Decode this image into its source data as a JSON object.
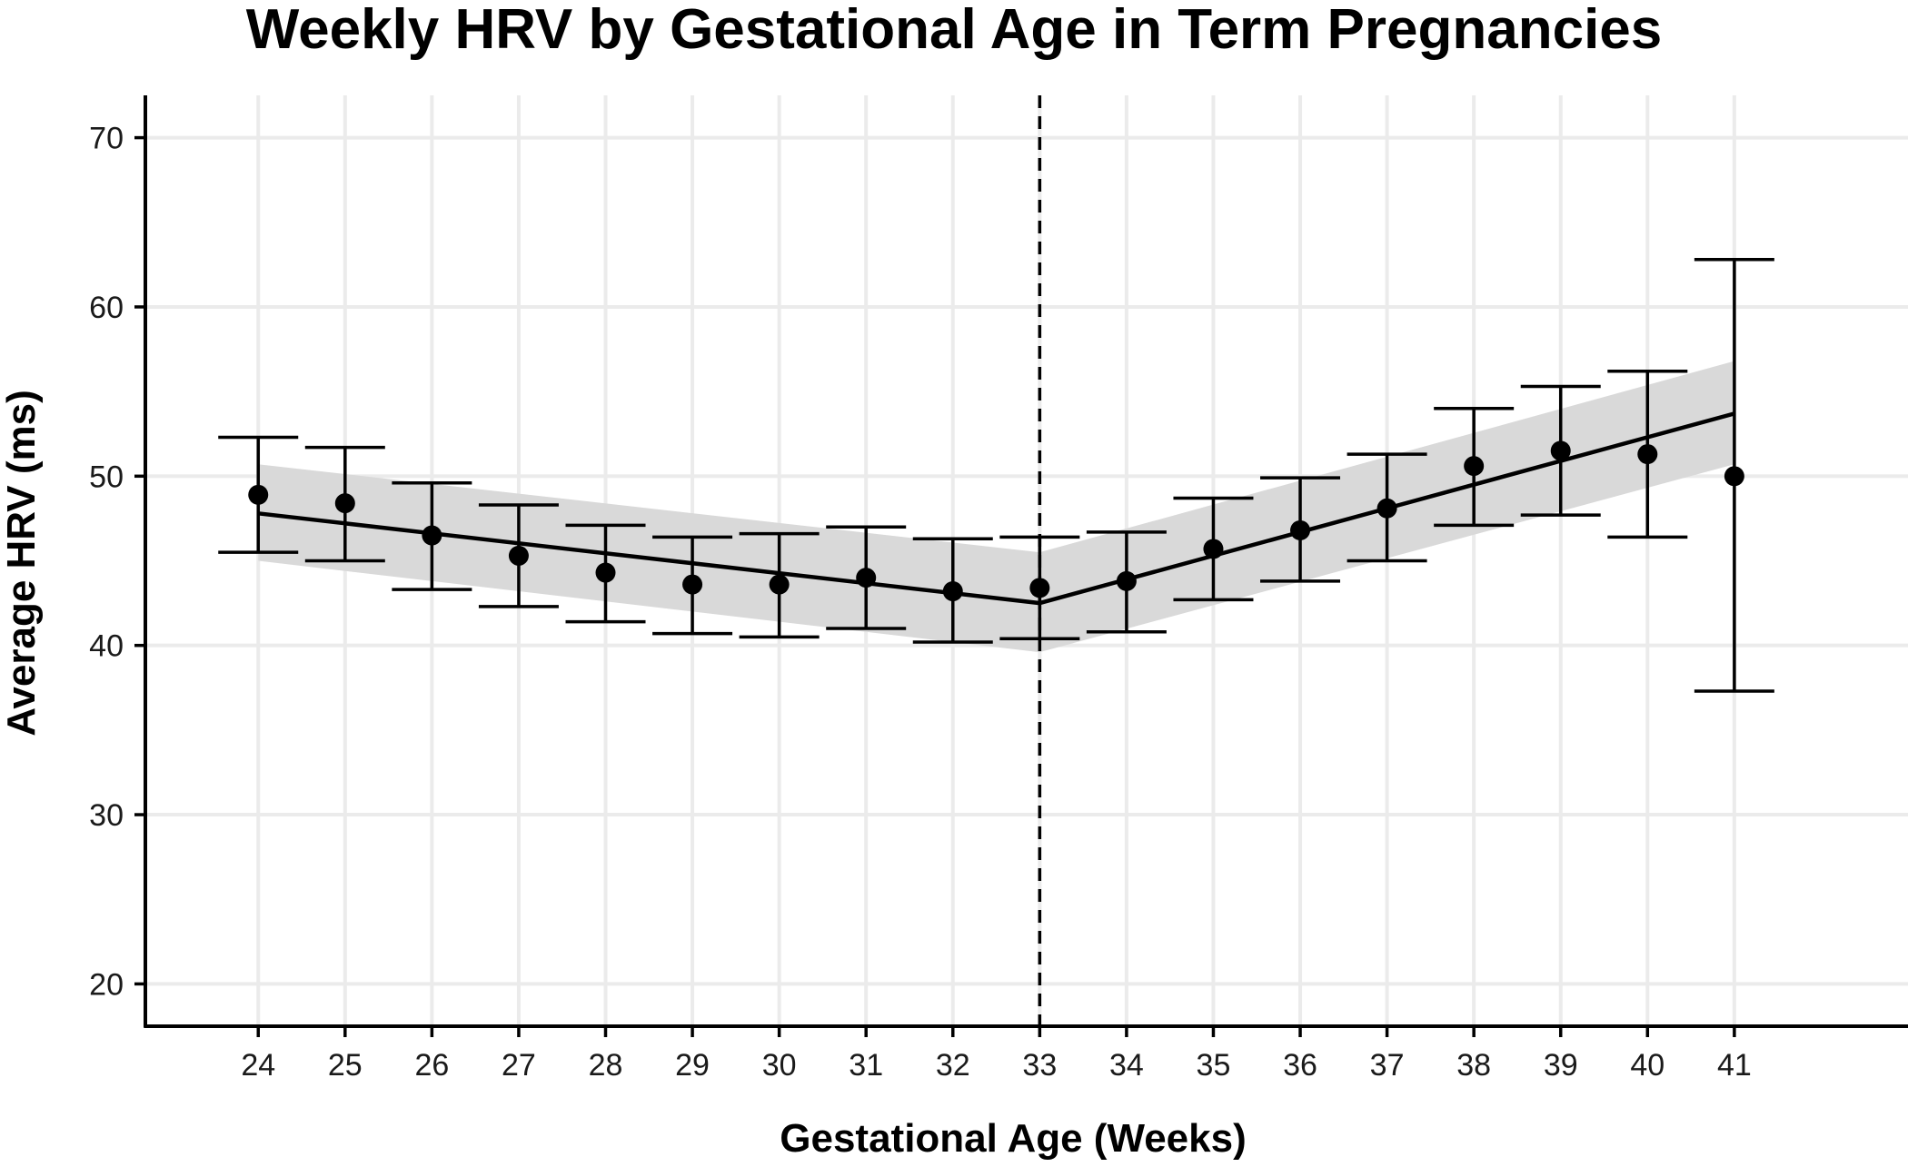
{
  "chart_data": {
    "type": "scatter",
    "title": "Weekly HRV by Gestational Age in Term Pregnancies",
    "xlabel": "Gestational Age (Weeks)",
    "ylabel": "Average HRV (ms)",
    "xlim": [
      22.7,
      43.0
    ],
    "ylim": [
      17.5,
      72.5
    ],
    "x_ticks": [
      24,
      25,
      26,
      27,
      28,
      29,
      30,
      31,
      32,
      33,
      34,
      35,
      36,
      37,
      38,
      39,
      40,
      41
    ],
    "y_ticks": [
      20,
      30,
      40,
      50,
      60,
      70
    ],
    "grid": true,
    "legend": "none",
    "points": {
      "x": [
        24,
        25,
        26,
        27,
        28,
        29,
        30,
        31,
        32,
        33,
        34,
        35,
        36,
        37,
        38,
        39,
        40,
        41
      ],
      "y": [
        48.9,
        48.4,
        46.5,
        45.3,
        44.3,
        43.6,
        43.6,
        44.0,
        43.2,
        43.4,
        43.8,
        45.7,
        46.8,
        48.1,
        50.6,
        51.5,
        51.3,
        50.0
      ],
      "err_low": [
        45.5,
        45.0,
        43.3,
        42.3,
        41.4,
        40.7,
        40.5,
        41.0,
        40.2,
        40.4,
        40.8,
        42.7,
        43.8,
        45.0,
        47.1,
        47.7,
        46.4,
        37.3
      ],
      "err_high": [
        52.3,
        51.7,
        49.6,
        48.3,
        47.1,
        46.4,
        46.6,
        47.0,
        46.3,
        46.4,
        46.7,
        48.7,
        49.9,
        51.3,
        54.0,
        55.3,
        56.2,
        62.8
      ]
    },
    "fit_line": {
      "x": [
        24,
        33,
        41
      ],
      "y": [
        47.8,
        42.5,
        53.7
      ]
    },
    "fit_band": {
      "x": [
        24,
        33,
        41
      ],
      "lower": [
        45.0,
        39.6,
        50.7
      ],
      "upper": [
        50.7,
        45.5,
        56.8
      ]
    },
    "breakpoint_x": 33,
    "colors": {
      "points": "#000000",
      "line": "#000000",
      "band": "#d9d9d9",
      "grid": "#ebebeb",
      "axis": "#000000"
    }
  }
}
